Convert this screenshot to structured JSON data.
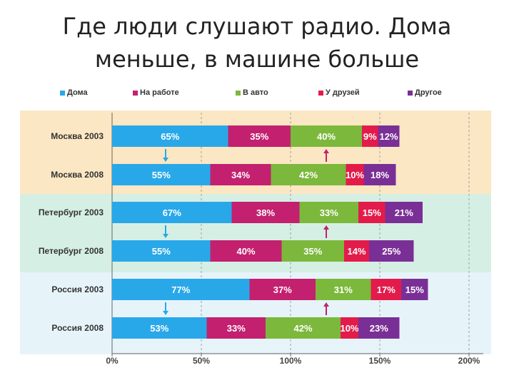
{
  "title": {
    "line1": "Где люди слушают радио. Дома",
    "line2": "меньше, в машине больше"
  },
  "colors": {
    "home": "#29A8E9",
    "work": "#C3206F",
    "car": "#7CB83C",
    "friends": "#E31B4B",
    "other": "#7A2F96",
    "band_moscow": "#FBE7C3",
    "band_piter": "#D6EFE4",
    "band_russia": "#E6F4FA",
    "arrow_down": "#29A8E9",
    "arrow_up": "#C3206F"
  },
  "chart_data": {
    "type": "bar",
    "orientation": "horizontal",
    "stacked": true,
    "categories": [
      "Москва 2003",
      "Москва 2008",
      "Петербург 2003",
      "Петербург 2008",
      "Россия 2003",
      "Россия 2008"
    ],
    "series": [
      {
        "name": "Дома",
        "values": [
          65,
          55,
          67,
          55,
          77,
          53
        ]
      },
      {
        "name": "На работе",
        "values": [
          35,
          34,
          38,
          40,
          37,
          33
        ]
      },
      {
        "name": "В авто",
        "values": [
          40,
          42,
          33,
          35,
          31,
          42
        ]
      },
      {
        "name": "У друзей",
        "values": [
          9,
          10,
          15,
          14,
          17,
          10
        ]
      },
      {
        "name": "Другое",
        "values": [
          12,
          18,
          21,
          25,
          15,
          23
        ]
      }
    ],
    "labels": [
      [
        "65%",
        "55%",
        "67%",
        "55%",
        "77%",
        "53%"
      ],
      [
        "35%",
        "34%",
        "38%",
        "40%",
        "37%",
        "33%"
      ],
      [
        "40%",
        "42%",
        "33%",
        "35%",
        "31%",
        "42%"
      ],
      [
        "9%",
        "10%",
        "15%",
        "14%",
        "17%",
        "10%"
      ],
      [
        "12%",
        "18%",
        "21%",
        "25%",
        "15%",
        "23%"
      ]
    ],
    "xlim": [
      0,
      200
    ],
    "xticks": [
      "0%",
      "50%",
      "100%",
      "150%",
      "200%"
    ],
    "legend_position": "top",
    "grid": true
  }
}
